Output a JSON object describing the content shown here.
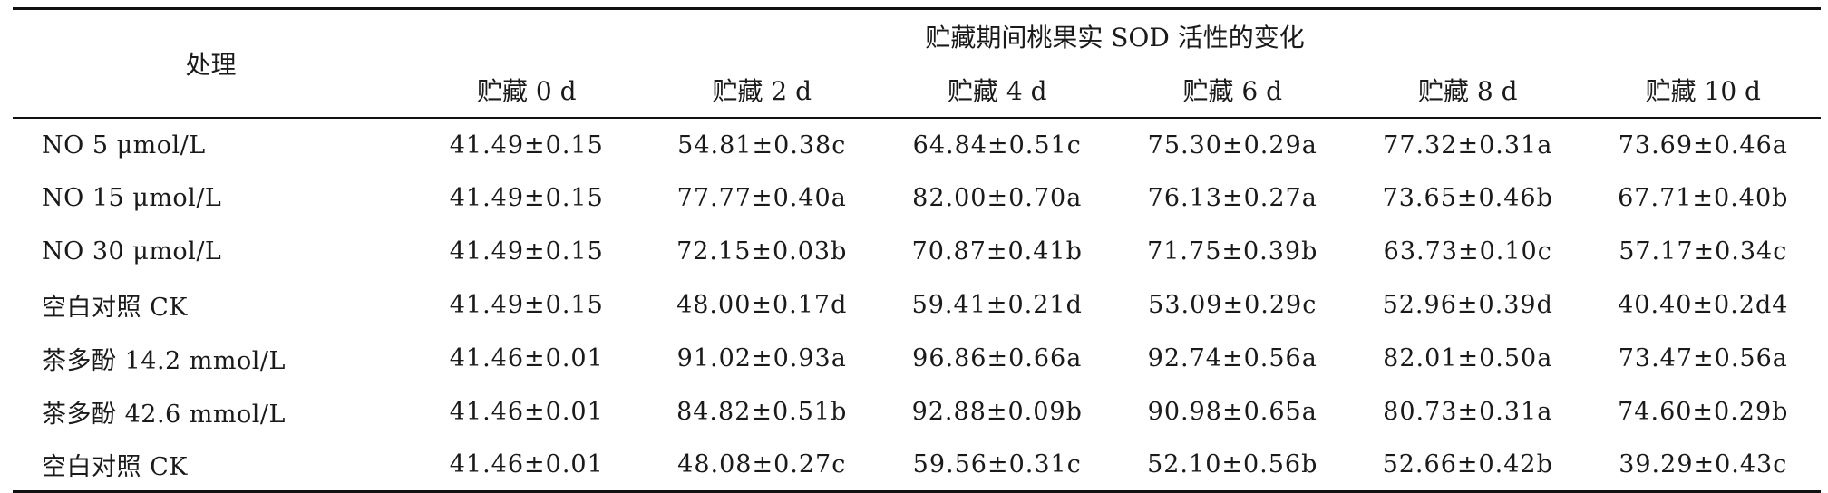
{
  "table": {
    "row_header": "处理",
    "group_header": "贮藏期间桃果实 SOD 活性的变化",
    "columns": [
      "贮藏 0 d",
      "贮藏 2 d",
      "贮藏 4 d",
      "贮藏 6 d",
      "贮藏 8 d",
      "贮藏 10 d"
    ],
    "rows": [
      {
        "label": "NO 5 μmol/L",
        "values": [
          "41.49±0.15",
          "54.81±0.38c",
          "64.84±0.51c",
          "75.30±0.29a",
          "77.32±0.31a",
          "73.69±0.46a"
        ]
      },
      {
        "label": "NO 15 μmol/L",
        "values": [
          "41.49±0.15",
          "77.77±0.40a",
          "82.00±0.70a",
          "76.13±0.27a",
          "73.65±0.46b",
          "67.71±0.40b"
        ]
      },
      {
        "label": "NO 30 μmol/L",
        "values": [
          "41.49±0.15",
          "72.15±0.03b",
          "70.87±0.41b",
          "71.75±0.39b",
          "63.73±0.10c",
          "57.17±0.34c"
        ]
      },
      {
        "label": "空白对照 CK",
        "values": [
          "41.49±0.15",
          "48.00±0.17d",
          "59.41±0.21d",
          "53.09±0.29c",
          "52.96±0.39d",
          "40.40±0.2d4"
        ]
      },
      {
        "label": "茶多酚 14.2 mmol/L",
        "values": [
          "41.46±0.01",
          "91.02±0.93a",
          "96.86±0.66a",
          "92.74±0.56a",
          "82.01±0.50a",
          "73.47±0.56a"
        ]
      },
      {
        "label": "茶多酚 42.6 mmol/L",
        "values": [
          "41.46±0.01",
          "84.82±0.51b",
          "92.88±0.09b",
          "90.98±0.65a",
          "80.73±0.31a",
          "74.60±0.29b"
        ]
      },
      {
        "label": "空白对照 CK",
        "values": [
          "41.46±0.01",
          "48.08±0.27c",
          "59.56±0.31c",
          "52.10±0.56b",
          "52.66±0.42b",
          "39.29±0.43c"
        ]
      }
    ]
  }
}
